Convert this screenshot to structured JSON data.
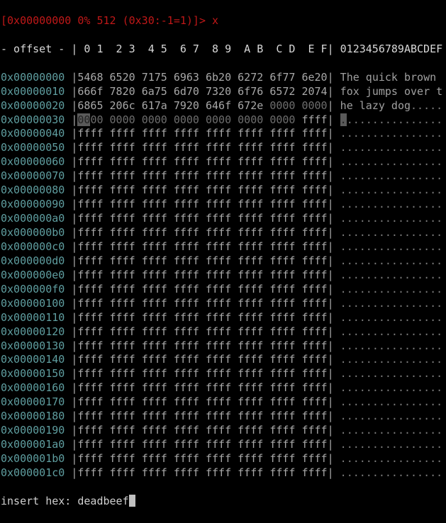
{
  "title_bar": "[0x00000000 0% 512 (0x30:-1=1)]> x",
  "header": {
    "offset_label": "- offset -",
    "columns": "| 0 1  2 3  4 5  6 7  8 9  A B  C D  E F|",
    "ascii_label": "0123456789ABCDEF"
  },
  "cursor": {
    "row": 3,
    "byte": 0
  },
  "colors": {
    "title": "#c01818",
    "offset": "#5f9ea0",
    "hex": "#a8a8a8",
    "zero": "#6e6e6e",
    "cursor_bg": "#5a5a5a"
  },
  "rows": [
    {
      "offset": "0x00000000",
      "words": [
        "5468",
        "6520",
        "7175",
        "6963",
        "6b20",
        "6272",
        "6f77",
        "6e20"
      ],
      "ascii": "The quick brown "
    },
    {
      "offset": "0x00000010",
      "words": [
        "666f",
        "7820",
        "6a75",
        "6d70",
        "7320",
        "6f76",
        "6572",
        "2074"
      ],
      "ascii": "fox jumps over t"
    },
    {
      "offset": "0x00000020",
      "words": [
        "6865",
        "206c",
        "617a",
        "7920",
        "646f",
        "672e",
        "0000",
        "0000"
      ],
      "ascii": "he lazy dog....."
    },
    {
      "offset": "0x00000030",
      "words": [
        "0000",
        "0000",
        "0000",
        "0000",
        "0000",
        "0000",
        "0000",
        "ffff"
      ],
      "ascii": "................"
    },
    {
      "offset": "0x00000040",
      "words": [
        "ffff",
        "ffff",
        "ffff",
        "ffff",
        "ffff",
        "ffff",
        "ffff",
        "ffff"
      ],
      "ascii": "................"
    },
    {
      "offset": "0x00000050",
      "words": [
        "ffff",
        "ffff",
        "ffff",
        "ffff",
        "ffff",
        "ffff",
        "ffff",
        "ffff"
      ],
      "ascii": "................"
    },
    {
      "offset": "0x00000060",
      "words": [
        "ffff",
        "ffff",
        "ffff",
        "ffff",
        "ffff",
        "ffff",
        "ffff",
        "ffff"
      ],
      "ascii": "................"
    },
    {
      "offset": "0x00000070",
      "words": [
        "ffff",
        "ffff",
        "ffff",
        "ffff",
        "ffff",
        "ffff",
        "ffff",
        "ffff"
      ],
      "ascii": "................"
    },
    {
      "offset": "0x00000080",
      "words": [
        "ffff",
        "ffff",
        "ffff",
        "ffff",
        "ffff",
        "ffff",
        "ffff",
        "ffff"
      ],
      "ascii": "................"
    },
    {
      "offset": "0x00000090",
      "words": [
        "ffff",
        "ffff",
        "ffff",
        "ffff",
        "ffff",
        "ffff",
        "ffff",
        "ffff"
      ],
      "ascii": "................"
    },
    {
      "offset": "0x000000a0",
      "words": [
        "ffff",
        "ffff",
        "ffff",
        "ffff",
        "ffff",
        "ffff",
        "ffff",
        "ffff"
      ],
      "ascii": "................"
    },
    {
      "offset": "0x000000b0",
      "words": [
        "ffff",
        "ffff",
        "ffff",
        "ffff",
        "ffff",
        "ffff",
        "ffff",
        "ffff"
      ],
      "ascii": "................"
    },
    {
      "offset": "0x000000c0",
      "words": [
        "ffff",
        "ffff",
        "ffff",
        "ffff",
        "ffff",
        "ffff",
        "ffff",
        "ffff"
      ],
      "ascii": "................"
    },
    {
      "offset": "0x000000d0",
      "words": [
        "ffff",
        "ffff",
        "ffff",
        "ffff",
        "ffff",
        "ffff",
        "ffff",
        "ffff"
      ],
      "ascii": "................"
    },
    {
      "offset": "0x000000e0",
      "words": [
        "ffff",
        "ffff",
        "ffff",
        "ffff",
        "ffff",
        "ffff",
        "ffff",
        "ffff"
      ],
      "ascii": "................"
    },
    {
      "offset": "0x000000f0",
      "words": [
        "ffff",
        "ffff",
        "ffff",
        "ffff",
        "ffff",
        "ffff",
        "ffff",
        "ffff"
      ],
      "ascii": "................"
    },
    {
      "offset": "0x00000100",
      "words": [
        "ffff",
        "ffff",
        "ffff",
        "ffff",
        "ffff",
        "ffff",
        "ffff",
        "ffff"
      ],
      "ascii": "................"
    },
    {
      "offset": "0x00000110",
      "words": [
        "ffff",
        "ffff",
        "ffff",
        "ffff",
        "ffff",
        "ffff",
        "ffff",
        "ffff"
      ],
      "ascii": "................"
    },
    {
      "offset": "0x00000120",
      "words": [
        "ffff",
        "ffff",
        "ffff",
        "ffff",
        "ffff",
        "ffff",
        "ffff",
        "ffff"
      ],
      "ascii": "................"
    },
    {
      "offset": "0x00000130",
      "words": [
        "ffff",
        "ffff",
        "ffff",
        "ffff",
        "ffff",
        "ffff",
        "ffff",
        "ffff"
      ],
      "ascii": "................"
    },
    {
      "offset": "0x00000140",
      "words": [
        "ffff",
        "ffff",
        "ffff",
        "ffff",
        "ffff",
        "ffff",
        "ffff",
        "ffff"
      ],
      "ascii": "................"
    },
    {
      "offset": "0x00000150",
      "words": [
        "ffff",
        "ffff",
        "ffff",
        "ffff",
        "ffff",
        "ffff",
        "ffff",
        "ffff"
      ],
      "ascii": "................"
    },
    {
      "offset": "0x00000160",
      "words": [
        "ffff",
        "ffff",
        "ffff",
        "ffff",
        "ffff",
        "ffff",
        "ffff",
        "ffff"
      ],
      "ascii": "................"
    },
    {
      "offset": "0x00000170",
      "words": [
        "ffff",
        "ffff",
        "ffff",
        "ffff",
        "ffff",
        "ffff",
        "ffff",
        "ffff"
      ],
      "ascii": "................"
    },
    {
      "offset": "0x00000180",
      "words": [
        "ffff",
        "ffff",
        "ffff",
        "ffff",
        "ffff",
        "ffff",
        "ffff",
        "ffff"
      ],
      "ascii": "................"
    },
    {
      "offset": "0x00000190",
      "words": [
        "ffff",
        "ffff",
        "ffff",
        "ffff",
        "ffff",
        "ffff",
        "ffff",
        "ffff"
      ],
      "ascii": "................"
    },
    {
      "offset": "0x000001a0",
      "words": [
        "ffff",
        "ffff",
        "ffff",
        "ffff",
        "ffff",
        "ffff",
        "ffff",
        "ffff"
      ],
      "ascii": "................"
    },
    {
      "offset": "0x000001b0",
      "words": [
        "ffff",
        "ffff",
        "ffff",
        "ffff",
        "ffff",
        "ffff",
        "ffff",
        "ffff"
      ],
      "ascii": "................"
    },
    {
      "offset": "0x000001c0",
      "words": [
        "ffff",
        "ffff",
        "ffff",
        "ffff",
        "ffff",
        "ffff",
        "ffff",
        "ffff"
      ],
      "ascii": "................"
    }
  ],
  "prompt": {
    "label": "insert hex: ",
    "value": "deadbeef"
  }
}
